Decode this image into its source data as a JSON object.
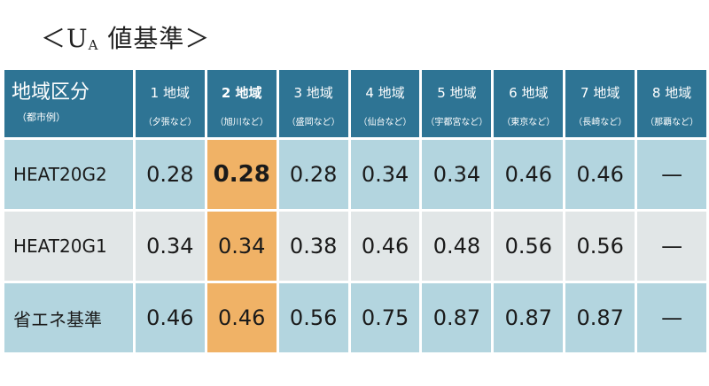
{
  "title": {
    "prefix": "＜U",
    "subscript": "A",
    "suffix": " 値基準＞"
  },
  "table": {
    "corner": {
      "label": "地域区分",
      "sublabel": "（都市例）"
    },
    "regions": [
      {
        "label": "1 地域",
        "example": "（夕張など）"
      },
      {
        "label": "2 地域",
        "example": "（旭川など）"
      },
      {
        "label": "3 地域",
        "example": "（盛岡など）"
      },
      {
        "label": "4 地域",
        "example": "（仙台など）"
      },
      {
        "label": "5 地域",
        "example": "（宇都宮など）"
      },
      {
        "label": "6 地域",
        "example": "（東京など）"
      },
      {
        "label": "7 地域",
        "example": "（長崎など）"
      },
      {
        "label": "8 地域",
        "example": "（那覇など）"
      }
    ],
    "highlight_column": 2,
    "highlight_color": "#f0b266",
    "header_color": "#2e7494",
    "rows": [
      {
        "label": "HEAT20G2",
        "values": [
          "0.28",
          "0.28",
          "0.28",
          "0.34",
          "0.34",
          "0.46",
          "0.46",
          "—"
        ]
      },
      {
        "label": "HEAT20G1",
        "values": [
          "0.34",
          "0.34",
          "0.38",
          "0.46",
          "0.48",
          "0.56",
          "0.56",
          "—"
        ]
      },
      {
        "label": "省エネ基準",
        "values": [
          "0.46",
          "0.46",
          "0.56",
          "0.75",
          "0.87",
          "0.87",
          "0.87",
          "—"
        ]
      }
    ]
  }
}
